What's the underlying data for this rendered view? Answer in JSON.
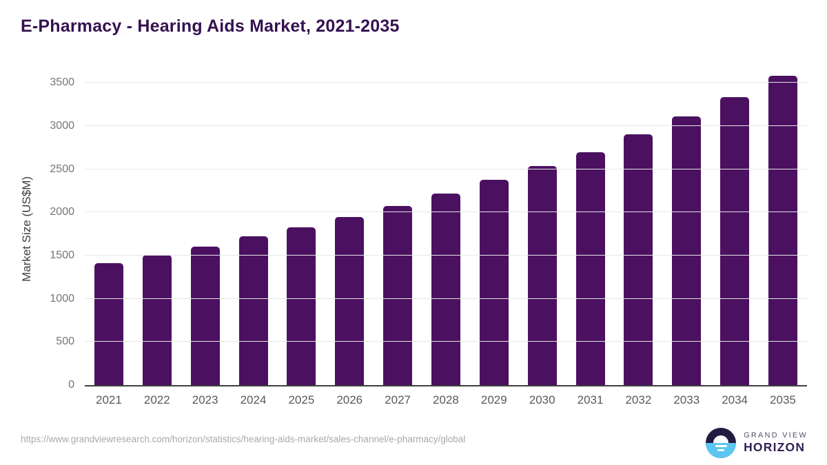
{
  "chart_data": {
    "type": "bar",
    "title": "E-Pharmacy - Hearing Aids Market, 2021-2035",
    "categories": [
      "2021",
      "2022",
      "2023",
      "2024",
      "2025",
      "2026",
      "2027",
      "2028",
      "2029",
      "2030",
      "2031",
      "2032",
      "2033",
      "2034",
      "2035"
    ],
    "values": [
      1415,
      1510,
      1600,
      1720,
      1830,
      1945,
      2075,
      2220,
      2375,
      2535,
      2700,
      2900,
      3110,
      3335,
      3580
    ],
    "xlabel": "",
    "ylabel": "Market Size (US$M)",
    "ylim": [
      0,
      3500
    ],
    "yticks": [
      0,
      500,
      1000,
      1500,
      2000,
      2500,
      3000,
      3500
    ],
    "grid": true,
    "legend": "none",
    "bar_color": "#4b1160"
  },
  "footer": {
    "source_url": "https://www.grandviewresearch.com/horizon/statistics/hearing-aids-market/sales-channel/e-pharmacy/global",
    "brand": {
      "top": "GRAND VIEW",
      "bottom": "HORIZON"
    }
  },
  "colors": {
    "title": "#351150",
    "bar": "#4b1160",
    "gridline": "#e7e7e7",
    "axis_line": "#3f3f3f",
    "y_tick_label": "#757575",
    "x_tick_label": "#595959",
    "source_text": "#a9a9a9",
    "logo_dark": "#241b42",
    "logo_blue": "#5bc6f1"
  }
}
